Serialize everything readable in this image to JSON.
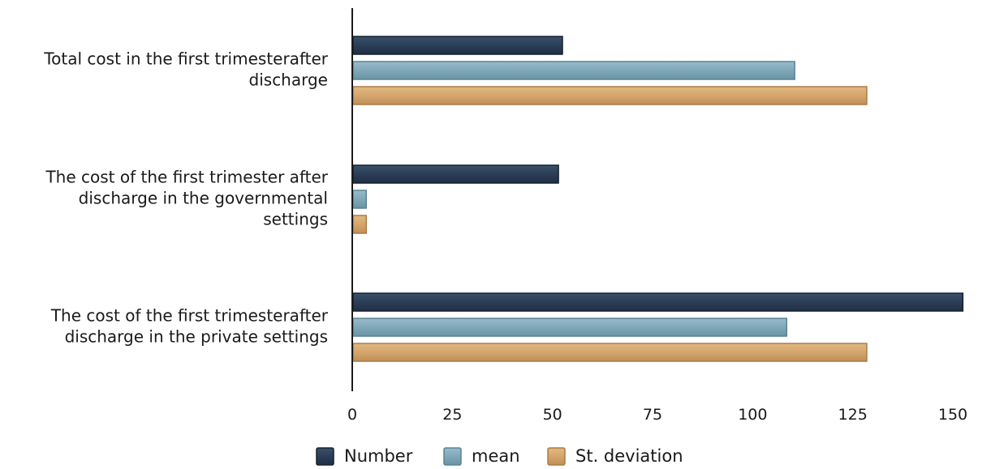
{
  "chart_data": {
    "type": "bar",
    "orientation": "horizontal",
    "title": "",
    "xlabel": "",
    "ylabel": "",
    "categories": [
      [
        "Total cost in the first trimesterafter",
        "discharge"
      ],
      [
        "The cost of the first trimester after",
        "discharge in the governmental",
        "settings"
      ],
      [
        "The cost of the first trimesterafter",
        "discharge in the private settings"
      ]
    ],
    "series": [
      {
        "name": "Number",
        "color": "#2b3e57",
        "values": [
          52.5,
          51.5,
          152.5
        ]
      },
      {
        "name": "mean",
        "color": "#7fa8b8",
        "values": [
          110.5,
          3.5,
          108.5
        ]
      },
      {
        "name": "St. deviation",
        "color": "#d4a56c",
        "values": [
          128.5,
          3.5,
          128.5
        ]
      }
    ],
    "xlim": [
      0,
      160
    ],
    "xticks": [
      "0",
      "25",
      "50",
      "75",
      "100",
      "125",
      "150"
    ],
    "grid": false,
    "legend_position": "bottom"
  }
}
